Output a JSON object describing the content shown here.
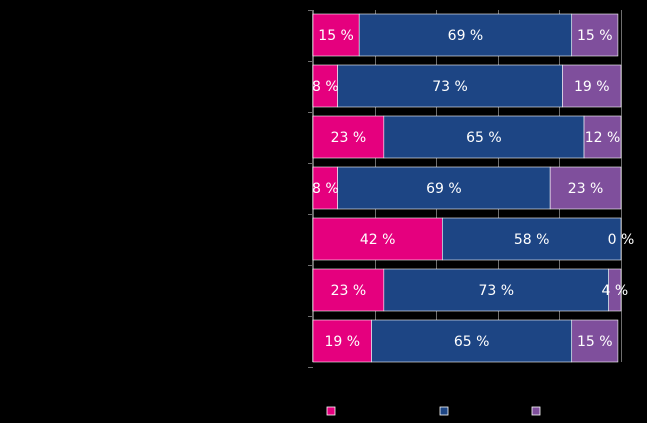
{
  "chart_data": {
    "type": "bar",
    "orientation": "horizontal",
    "stacked": true,
    "percent_stacked": true,
    "title": "",
    "xlabel": "",
    "ylabel": "",
    "xlim": [
      0,
      100
    ],
    "categories": [
      "",
      "",
      "",
      "",
      "",
      "",
      ""
    ],
    "series": [
      {
        "values": [
          15,
          8,
          23,
          8,
          42,
          23,
          19
        ],
        "labels": [
          "15 %",
          "8 %",
          "23 %",
          "8 %",
          "42 %",
          "23 %",
          "19 %"
        ],
        "color": "#e5007e"
      },
      {
        "values": [
          69,
          73,
          65,
          69,
          58,
          73,
          65
        ],
        "labels": [
          "69 %",
          "73 %",
          "65 %",
          "69 %",
          "58 %",
          "73 %",
          "65 %"
        ],
        "color": "#1d4584"
      },
      {
        "values": [
          15,
          19,
          12,
          23,
          0,
          4,
          15
        ],
        "labels": [
          "15 %",
          "19 %",
          "12 %",
          "23 %",
          "0 %",
          "4 %",
          "15 %"
        ],
        "color": "#7f4f9c"
      }
    ],
    "legend": {
      "position": "bottom",
      "entries": [
        "",
        "",
        ""
      ]
    },
    "grid": {
      "vertical": true,
      "horizontal": false
    },
    "background": "#000000",
    "gridline_color": "#6e6e6e",
    "label_color": "#ffffff"
  }
}
